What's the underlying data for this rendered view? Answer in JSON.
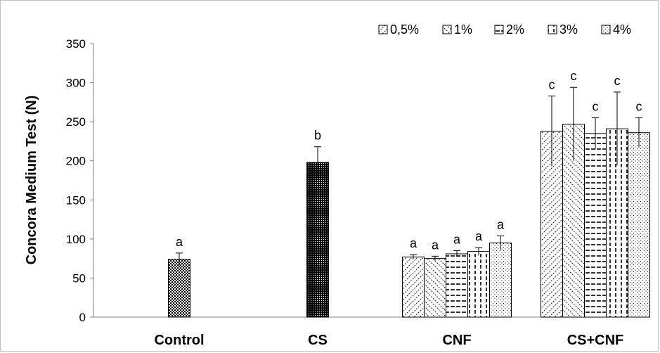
{
  "chart_data": {
    "type": "bar",
    "ylabel": "Concora Medium Test (N)",
    "ylim": [
      0,
      350
    ],
    "yticks": [
      0,
      50,
      100,
      150,
      200,
      250,
      300,
      350
    ],
    "grid": false,
    "legend_position": "top-right",
    "legend": [
      "0,5%",
      "1%",
      "2%",
      "3%",
      "4%"
    ],
    "groups": [
      {
        "name": "Control",
        "bars": [
          {
            "value": 74,
            "error": 8,
            "letter": "a",
            "pattern": "check"
          }
        ]
      },
      {
        "name": "CS",
        "bars": [
          {
            "value": 198,
            "error": 20,
            "letter": "b",
            "pattern": "dense"
          }
        ]
      },
      {
        "name": "CNF",
        "bars": [
          {
            "value": 77,
            "error": 3,
            "letter": "a",
            "pattern": "p05"
          },
          {
            "value": 75,
            "error": 3,
            "letter": "a",
            "pattern": "p1"
          },
          {
            "value": 81,
            "error": 4,
            "letter": "a",
            "pattern": "p2"
          },
          {
            "value": 84,
            "error": 5,
            "letter": "a",
            "pattern": "p3"
          },
          {
            "value": 95,
            "error": 9,
            "letter": "a",
            "pattern": "p4"
          }
        ]
      },
      {
        "name": "CS+CNF",
        "bars": [
          {
            "value": 238,
            "error": 45,
            "letter": "c",
            "pattern": "p05"
          },
          {
            "value": 247,
            "error": 47,
            "letter": "c",
            "pattern": "p1"
          },
          {
            "value": 235,
            "error": 20,
            "letter": "c",
            "pattern": "p2"
          },
          {
            "value": 241,
            "error": 47,
            "letter": "c",
            "pattern": "p3"
          },
          {
            "value": 236,
            "error": 19,
            "letter": "c",
            "pattern": "p4"
          }
        ]
      }
    ]
  }
}
